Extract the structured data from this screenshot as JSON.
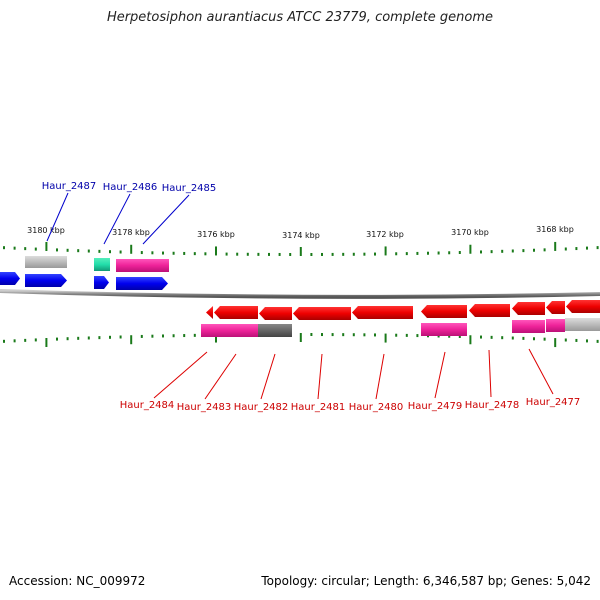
{
  "title": "Herpetosiphon aurantiacus ATCC 23779, complete genome",
  "footer": {
    "accession": "Accession: NC_009972",
    "topology": "Topology: circular; Length: 6,346,587 bp; Genes: 5,042"
  },
  "colors": {
    "forward_cds": "#0000ee",
    "reverse_cds": "#ee0000",
    "forward_label": "#0000aa",
    "reverse_label": "#cc0000",
    "tick": "#1a7a1a",
    "backbone": "#888888",
    "cog_magenta": "#ee2299",
    "cog_gray": "#bbbbbb",
    "cog_dark_gray": "#666666",
    "cog_teal": "#22ddaa"
  },
  "ruler": {
    "labels": [
      "3180 kbp",
      "3178 kbp",
      "3176 kbp",
      "3174 kbp",
      "3172 kbp",
      "3170 kbp",
      "3168 kbp"
    ]
  },
  "forward_labels": [
    "Haur_2487",
    "Haur_2486",
    "Haur_2485"
  ],
  "reverse_labels": [
    "Haur_2484",
    "Haur_2483",
    "Haur_2482",
    "Haur_2481",
    "Haur_2480",
    "Haur_2479",
    "Haur_2478",
    "Haur_2477"
  ]
}
